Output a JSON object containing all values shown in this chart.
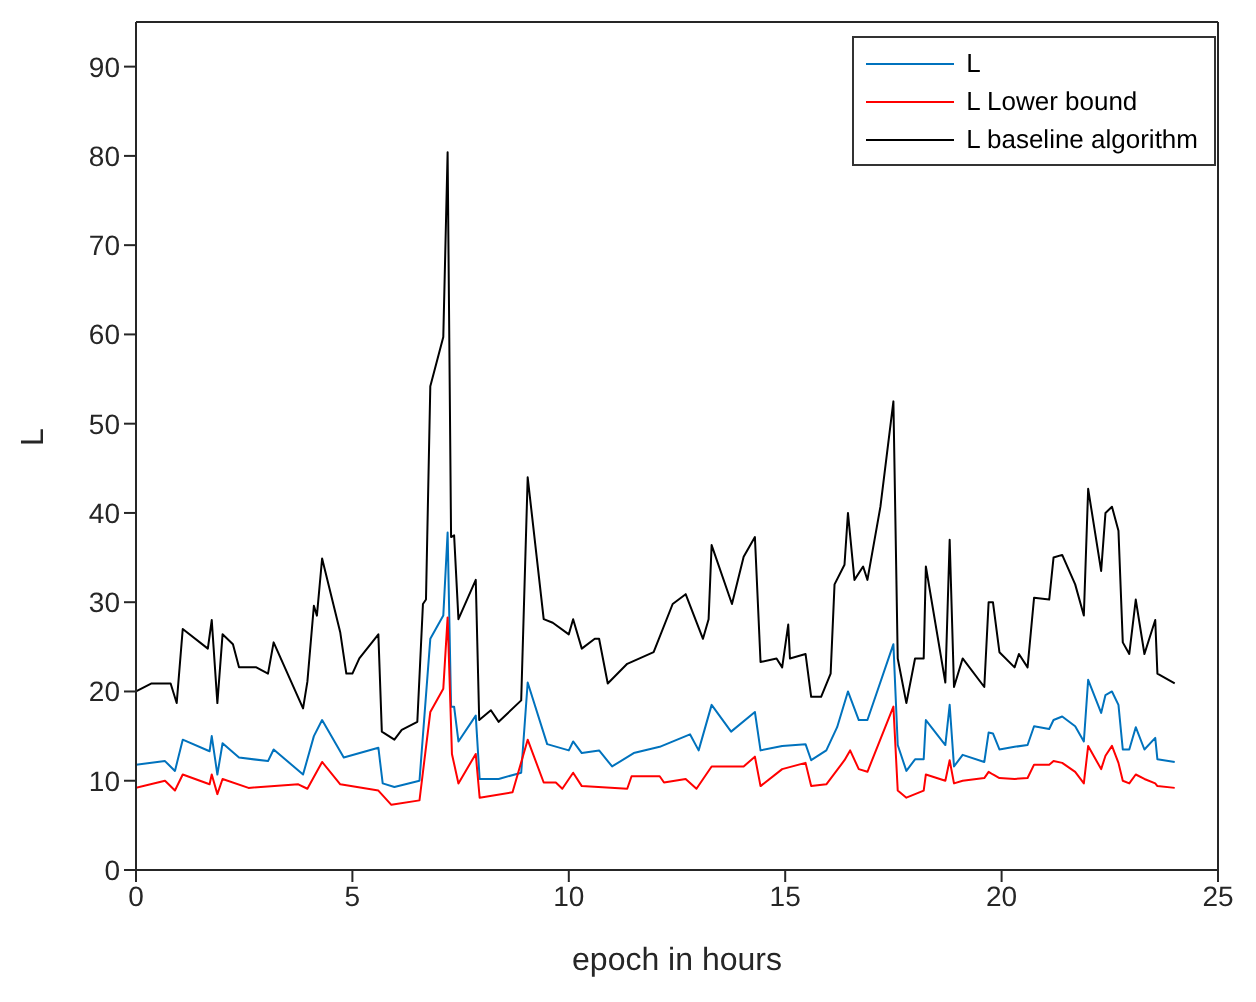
{
  "chart_data": {
    "type": "line",
    "xlabel": "epoch in hours",
    "ylabel": "L",
    "xlim": [
      0,
      25
    ],
    "xticks": [
      0,
      5,
      10,
      15,
      20,
      25
    ],
    "ylim": [
      0,
      95
    ],
    "yticks": [
      0,
      10,
      20,
      30,
      40,
      50,
      60,
      70,
      80,
      90
    ],
    "grid": false,
    "legend": "top right",
    "marker": "none",
    "line_style": "solid",
    "series": [
      {
        "name": "L",
        "color": "#0072bd",
        "x": [
          0,
          0.67,
          0.9,
          1.08,
          1.7,
          1.75,
          1.88,
          2.0,
          2.38,
          3.05,
          3.18,
          3.86,
          4.11,
          4.3,
          4.8,
          5.6,
          5.7,
          5.97,
          6.55,
          6.8,
          7.1,
          7.2,
          7.28,
          7.35,
          7.45,
          7.85,
          7.94,
          8.38,
          8.9,
          9.05,
          9.5,
          10.0,
          10.1,
          10.3,
          10.7,
          11.0,
          11.5,
          12.1,
          12.8,
          13.0,
          13.3,
          13.75,
          14.3,
          14.43,
          14.93,
          15.47,
          15.6,
          15.95,
          16.2,
          16.45,
          16.7,
          16.9,
          17.5,
          17.6,
          17.8,
          18.0,
          18.2,
          18.25,
          18.7,
          18.8,
          18.9,
          19.1,
          19.6,
          19.7,
          19.8,
          19.95,
          20.3,
          20.6,
          20.75,
          21.1,
          21.2,
          21.4,
          21.7,
          21.9,
          22.0,
          22.3,
          22.4,
          22.55,
          22.7,
          22.8,
          22.95,
          23.1,
          23.3,
          23.55,
          23.6,
          24.0
        ],
        "values": [
          11.8,
          12.2,
          11.1,
          14.6,
          13.3,
          15,
          10.7,
          14.2,
          12.6,
          12.2,
          13.5,
          10.7,
          15,
          16.8,
          12.6,
          13.7,
          9.7,
          9.3,
          10,
          25.9,
          28.5,
          37.8,
          18.3,
          18.3,
          14.4,
          17.3,
          10.2,
          10.2,
          10.9,
          21,
          14.1,
          13.4,
          14.4,
          13.1,
          13.4,
          11.6,
          13.1,
          13.8,
          15.2,
          13.4,
          18.5,
          15.5,
          17.7,
          13.4,
          13.9,
          14.1,
          12.3,
          13.4,
          16,
          20,
          16.8,
          16.8,
          25.3,
          14,
          11.1,
          12.4,
          12.4,
          16.8,
          14,
          18.5,
          11.6,
          12.9,
          12.1,
          15.4,
          15.3,
          13.5,
          13.8,
          14,
          16.1,
          15.8,
          16.8,
          17.2,
          16.1,
          14.4,
          21.3,
          17.6,
          19.6,
          20,
          18.5,
          13.5,
          13.5,
          16,
          13.5,
          14.8,
          12.4,
          12.1
        ]
      },
      {
        "name": "L Lower bound",
        "color": "#ff0000",
        "x": [
          0,
          0.67,
          0.9,
          1.08,
          1.7,
          1.75,
          1.88,
          2.0,
          2.6,
          3.75,
          3.96,
          4.3,
          4.72,
          5.6,
          5.9,
          6.55,
          6.8,
          7.1,
          7.2,
          7.3,
          7.45,
          7.85,
          7.94,
          8.7,
          9.05,
          9.42,
          9.7,
          9.85,
          10.1,
          10.3,
          11.35,
          11.45,
          12.1,
          12.2,
          12.7,
          12.95,
          13.3,
          14.04,
          14.3,
          14.43,
          14.93,
          15.47,
          15.6,
          15.95,
          16.37,
          16.5,
          16.7,
          16.9,
          17.5,
          17.6,
          17.8,
          18.0,
          18.2,
          18.25,
          18.7,
          18.8,
          18.9,
          19.1,
          19.6,
          19.7,
          19.8,
          19.95,
          20.3,
          20.6,
          20.75,
          21.1,
          21.2,
          21.4,
          21.7,
          21.9,
          22.0,
          22.3,
          22.4,
          22.55,
          22.7,
          22.8,
          22.95,
          23.1,
          23.3,
          23.55,
          23.6,
          24.0
        ],
        "values": [
          9.2,
          10,
          8.9,
          10.7,
          9.6,
          10.7,
          8.5,
          10.2,
          9.2,
          9.6,
          9.1,
          12.1,
          9.6,
          8.9,
          7.3,
          7.8,
          17.7,
          20.3,
          28.3,
          13,
          9.7,
          13,
          8.1,
          8.7,
          14.6,
          9.8,
          9.8,
          9.1,
          10.9,
          9.4,
          9.1,
          10.5,
          10.5,
          9.8,
          10.2,
          9.1,
          11.6,
          11.6,
          12.7,
          9.4,
          11.3,
          12,
          9.4,
          9.6,
          12.3,
          13.4,
          11.3,
          11,
          18.3,
          8.9,
          8.1,
          8.5,
          8.9,
          10.7,
          10,
          12.3,
          9.7,
          10,
          10.3,
          11,
          10.7,
          10.3,
          10.2,
          10.3,
          11.8,
          11.8,
          12.2,
          12,
          11,
          9.7,
          13.9,
          11.3,
          12.8,
          13.9,
          12,
          10,
          9.7,
          10.7,
          10.2,
          9.7,
          9.4,
          9.2
        ]
      },
      {
        "name": "L baseline algorithm",
        "color": "#000000",
        "x": [
          0,
          0.36,
          0.8,
          0.94,
          1.08,
          1.66,
          1.75,
          1.88,
          2.0,
          2.24,
          2.38,
          2.78,
          3.05,
          3.18,
          3.86,
          3.96,
          4.11,
          4.18,
          4.3,
          4.72,
          4.86,
          5.0,
          5.16,
          5.6,
          5.68,
          5.97,
          6.14,
          6.5,
          6.63,
          6.7,
          6.8,
          7.1,
          7.2,
          7.28,
          7.35,
          7.45,
          7.85,
          7.93,
          8.2,
          8.38,
          8.9,
          9.05,
          9.42,
          9.63,
          10.0,
          10.1,
          10.3,
          10.6,
          10.7,
          10.9,
          11.35,
          11.96,
          12.4,
          12.7,
          13.1,
          13.23,
          13.3,
          13.77,
          14.04,
          14.3,
          14.43,
          14.8,
          14.93,
          15.07,
          15.11,
          15.47,
          15.6,
          15.83,
          16.05,
          16.14,
          16.37,
          16.45,
          16.6,
          16.8,
          16.9,
          17.2,
          17.5,
          17.6,
          17.8,
          18.0,
          18.2,
          18.25,
          18.7,
          18.8,
          18.9,
          19.1,
          19.6,
          19.7,
          19.8,
          19.95,
          20.3,
          20.4,
          20.6,
          20.75,
          21.1,
          21.2,
          21.4,
          21.7,
          21.9,
          22.0,
          22.3,
          22.4,
          22.55,
          22.7,
          22.8,
          22.95,
          23.1,
          23.3,
          23.55,
          23.6,
          24.0
        ],
        "values": [
          20,
          20.9,
          20.9,
          18.7,
          27,
          24.8,
          28,
          18.7,
          26.4,
          25.3,
          22.7,
          22.7,
          22,
          25.5,
          18.1,
          21.1,
          29.6,
          28.5,
          34.9,
          26.6,
          22,
          22,
          23.7,
          26.4,
          15.5,
          14.6,
          15.7,
          16.6,
          29.8,
          30.3,
          54.2,
          59.7,
          80.4,
          37.3,
          37.5,
          28.1,
          32.5,
          16.8,
          17.9,
          16.6,
          19,
          44,
          28.1,
          27.7,
          26.4,
          28.1,
          24.8,
          25.9,
          25.9,
          20.9,
          23.1,
          24.4,
          29.8,
          30.9,
          25.9,
          28.1,
          36.4,
          29.8,
          35.1,
          37.3,
          23.3,
          23.7,
          22.7,
          27.5,
          23.7,
          24.2,
          19.4,
          19.4,
          22,
          32,
          34.2,
          40,
          32.5,
          34,
          32.5,
          40.7,
          52.5,
          23.7,
          18.7,
          23.7,
          23.7,
          34,
          21,
          37,
          20.5,
          23.7,
          20.5,
          30,
          30,
          24.4,
          22.7,
          24.2,
          22.7,
          30.5,
          30.3,
          35,
          35.3,
          32,
          28.5,
          42.7,
          33.5,
          40,
          40.7,
          38,
          25.5,
          24.2,
          30.3,
          24.2,
          28,
          22,
          20.9
        ]
      }
    ]
  }
}
